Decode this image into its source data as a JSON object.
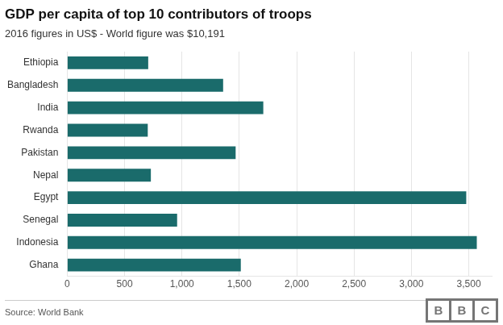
{
  "chart_data": {
    "type": "bar",
    "orientation": "horizontal",
    "title": "GDP per capita of top 10 contributors of troops",
    "subtitle": "2016 figures in US$ - World figure was $10,191",
    "source": "Source: World Bank",
    "annotations": [
      "B",
      "B",
      "C"
    ],
    "categories": [
      "Ethiopia",
      "Bangladesh",
      "India",
      "Rwanda",
      "Pakistan",
      "Nepal",
      "Egypt",
      "Senegal",
      "Indonesia",
      "Ghana"
    ],
    "values": [
      706,
      1359,
      1709,
      702,
      1468,
      729,
      3478,
      958,
      3570,
      1513
    ],
    "color": "#1a6b6b",
    "xlim": [
      0,
      3700
    ],
    "xticks": [
      0,
      500,
      {
        "value": 1000,
        "label": "1,000"
      },
      {
        "value": 1500,
        "label": "1,500"
      },
      {
        "value": 2000,
        "label": "2,000"
      },
      {
        "value": 2500,
        "label": "2,500"
      },
      {
        "value": 3000,
        "label": "3,000"
      },
      {
        "value": 3500,
        "label": "3,500"
      }
    ],
    "grid": true
  }
}
